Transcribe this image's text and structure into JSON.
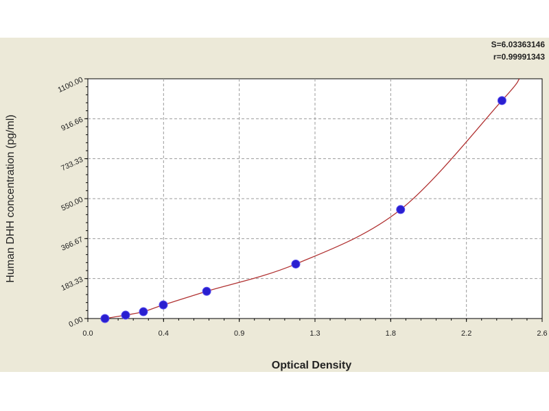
{
  "chart_data": {
    "type": "scatter",
    "xlabel": "Optical Density",
    "ylabel": "Human DHH concentration (pg/ml)",
    "xlim": [
      0,
      2.6
    ],
    "ylim": [
      0,
      1100
    ],
    "x_tick_labels": [
      "0.0",
      "0.4",
      "0.9",
      "1.3",
      "1.8",
      "2.2",
      "2.6"
    ],
    "y_tick_labels": [
      "0.00",
      "183.33",
      "366.67",
      "550.00",
      "733.33",
      "916.66",
      "1100.00"
    ],
    "points": [
      {
        "x": 0.098,
        "y": 0
      },
      {
        "x": 0.216,
        "y": 15.6
      },
      {
        "x": 0.318,
        "y": 31.25
      },
      {
        "x": 0.432,
        "y": 62.5
      },
      {
        "x": 0.68,
        "y": 125
      },
      {
        "x": 1.19,
        "y": 250
      },
      {
        "x": 1.79,
        "y": 500
      },
      {
        "x": 2.37,
        "y": 1000
      }
    ],
    "grid": true,
    "annotations": [
      "S=6.03363146",
      "r=0.99991343"
    ],
    "colors": {
      "points": "#2a1fd0",
      "curve": "#b03030",
      "background": "#ece9d8",
      "plot": "#ffffff"
    }
  }
}
